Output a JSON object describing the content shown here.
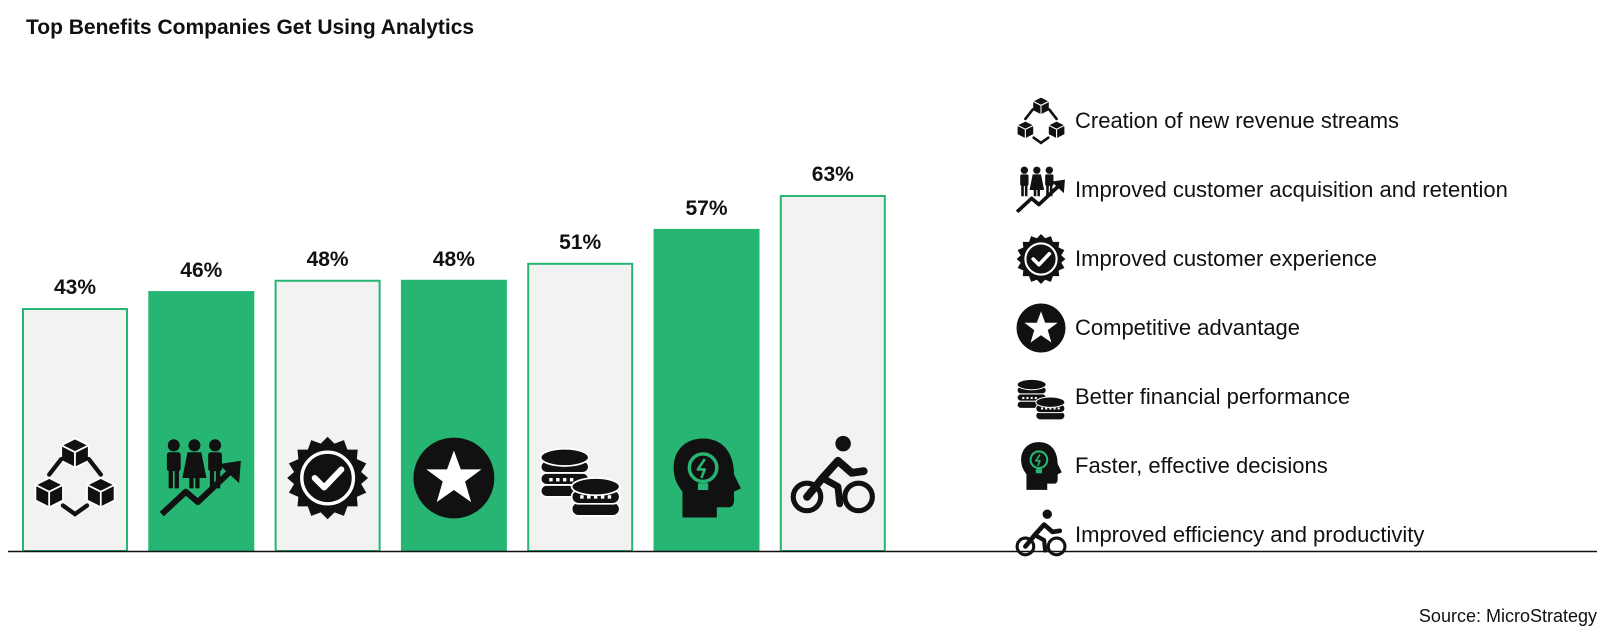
{
  "title": "Top Benefits Companies Get Using Analytics",
  "source": "Source: MicroStrategy",
  "colors": {
    "green": "#27b573",
    "light": "#f2f2f2",
    "outline": "#27b573",
    "icon": "#111111"
  },
  "chart_data": {
    "type": "bar",
    "title": "Top Benefits Companies Get Using Analytics",
    "categories": [
      "Creation of new revenue streams",
      "Improved customer acquisition and retention",
      "Improved customer experience",
      "Competitive advantage",
      "Better financial performance",
      "Faster, effective decisions",
      "Improved efficiency and productivity"
    ],
    "values": [
      43,
      46,
      48,
      48,
      51,
      57,
      63
    ],
    "value_labels": [
      "43%",
      "46%",
      "48%",
      "48%",
      "51%",
      "57%",
      "63%"
    ],
    "styles": [
      "outline",
      "filled",
      "outline",
      "filled",
      "outline",
      "filled",
      "outline"
    ],
    "icons": [
      "cubes-network-icon",
      "people-growth-icon",
      "check-badge-icon",
      "star-circle-icon",
      "coins-stack-icon",
      "head-lightbulb-icon",
      "cyclist-icon"
    ],
    "xlabel": "",
    "ylabel": "",
    "grid": false,
    "legend": "right"
  }
}
